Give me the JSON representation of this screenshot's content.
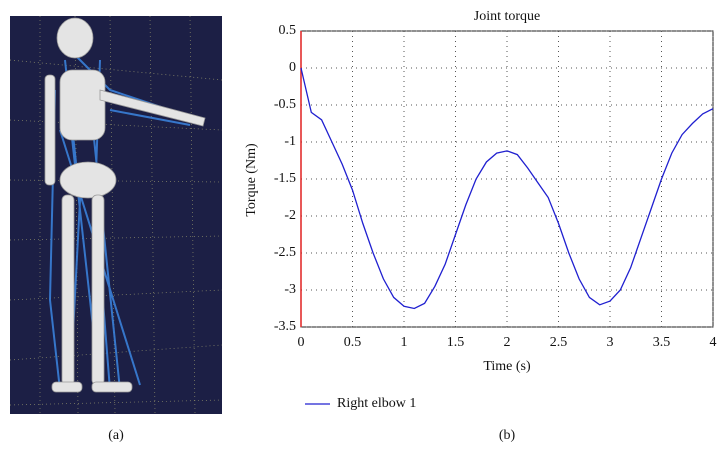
{
  "panel_labels": [
    "(a)",
    "(b)"
  ],
  "chart_data": {
    "type": "line",
    "title": "Joint torque",
    "x_label": "Time (s)",
    "y_label": "Torque (Nm)",
    "x": [
      0,
      0.1,
      0.2,
      0.3,
      0.4,
      0.5,
      0.6,
      0.7,
      0.8,
      0.9,
      1.0,
      1.1,
      1.2,
      1.3,
      1.4,
      1.5,
      1.6,
      1.7,
      1.8,
      1.9,
      2.0,
      2.1,
      2.2,
      2.3,
      2.4,
      2.5,
      2.6,
      2.7,
      2.8,
      2.9,
      3.0,
      3.1,
      3.2,
      3.3,
      3.4,
      3.5,
      3.6,
      3.7,
      3.8,
      3.9,
      4.0
    ],
    "series": [
      {
        "name": "Right elbow 1",
        "color": "#2020d0",
        "values": [
          0,
          -0.6,
          -0.7,
          -1.0,
          -1.3,
          -1.65,
          -2.1,
          -2.5,
          -2.85,
          -3.1,
          -3.22,
          -3.25,
          -3.18,
          -2.95,
          -2.65,
          -2.25,
          -1.85,
          -1.5,
          -1.27,
          -1.15,
          -1.12,
          -1.17,
          -1.35,
          -1.55,
          -1.75,
          -2.1,
          -2.5,
          -2.85,
          -3.1,
          -3.2,
          -3.15,
          -3.0,
          -2.7,
          -2.3,
          -1.9,
          -1.5,
          -1.15,
          -0.9,
          -0.75,
          -0.62,
          -0.55
        ]
      }
    ],
    "xlim": [
      0,
      4
    ],
    "xticks": [
      0,
      0.5,
      1,
      1.5,
      2,
      2.5,
      3,
      3.5,
      4
    ],
    "ylim": [
      -3.5,
      0.5
    ],
    "yticks": [
      0.5,
      0,
      -0.5,
      -1,
      -1.5,
      -2,
      -2.5,
      -3,
      -3.5
    ],
    "grid": true,
    "legend": "below"
  }
}
